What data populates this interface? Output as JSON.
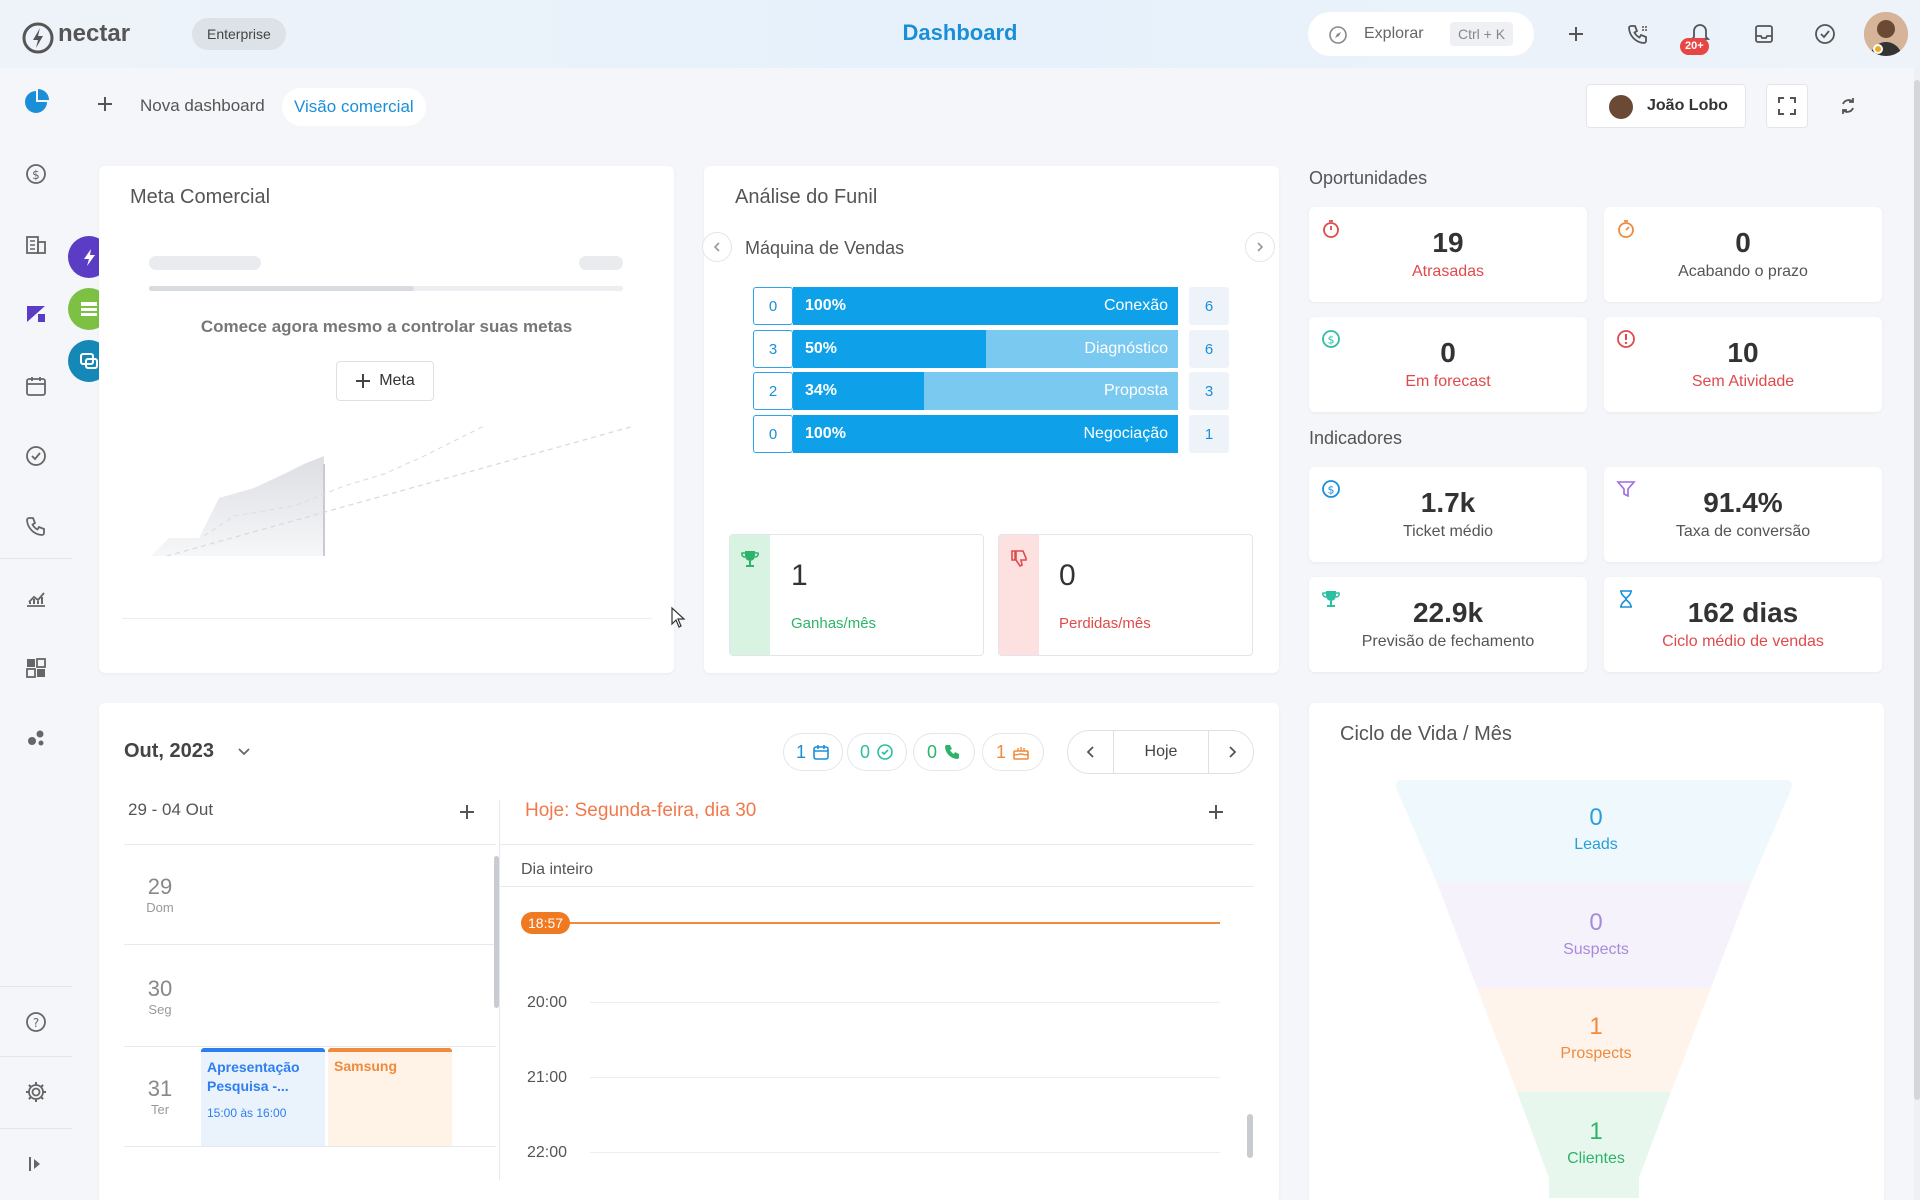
{
  "app": {
    "logo_text": "nectar",
    "plan_badge": "Enterprise",
    "page_title": "Dashboard"
  },
  "topbar": {
    "search_label": "Explorar",
    "search_shortcut": "Ctrl + K",
    "notification_count": "20+"
  },
  "subnav": {
    "new_dashboard": "Nova dashboard",
    "active_tab": "Visão comercial",
    "user_filter": "João Lobo"
  },
  "meta": {
    "title": "Meta Comercial",
    "empty_text": "Comece agora mesmo a controlar suas metas",
    "button": "Meta"
  },
  "funil": {
    "title": "Análise do Funil",
    "pipeline": "Máquina de Vendas",
    "stages": [
      {
        "name": "Conexão",
        "count": "0",
        "percent": "100%",
        "fill": 1.0,
        "total": "6"
      },
      {
        "name": "Diagnóstico",
        "count": "3",
        "percent": "50%",
        "fill": 0.5,
        "total": "6"
      },
      {
        "name": "Proposta",
        "count": "2",
        "percent": "34%",
        "fill": 0.34,
        "total": "3"
      },
      {
        "name": "Negociação",
        "count": "0",
        "percent": "100%",
        "fill": 1.0,
        "total": "1"
      }
    ],
    "won_value": "1",
    "won_label": "Ganhas/mês",
    "lost_value": "0",
    "lost_label": "Perdidas/mês"
  },
  "oportunidades": {
    "title": "Oportunidades",
    "items": [
      {
        "value": "19",
        "label": "Atrasadas"
      },
      {
        "value": "0",
        "label": "Acabando o prazo"
      },
      {
        "value": "0",
        "label": "Em forecast"
      },
      {
        "value": "10",
        "label": "Sem Atividade"
      }
    ]
  },
  "indicadores": {
    "title": "Indicadores",
    "items": [
      {
        "value": "1.7k",
        "label": "Ticket médio"
      },
      {
        "value": "91.4%",
        "label": "Taxa de conversão"
      },
      {
        "value": "22.9k",
        "label": "Previsão de fechamento"
      },
      {
        "value": "162 dias",
        "label": "Ciclo médio de vendas"
      }
    ]
  },
  "agenda": {
    "month": "Out, 2023",
    "chips": [
      "1",
      "0",
      "0",
      "1"
    ],
    "today_button": "Hoje",
    "week_range": "29 - 04 Out",
    "today_label": "Hoje: Segunda-feira, dia 30",
    "all_day": "Dia inteiro",
    "current_time": "18:57",
    "days": [
      {
        "num": "29",
        "name": "Dom"
      },
      {
        "num": "30",
        "name": "Seg"
      },
      {
        "num": "31",
        "name": "Ter"
      }
    ],
    "events": [
      {
        "title": "Apresentação Pesquisa -...",
        "time": "15:00 às 16:00"
      },
      {
        "title": "Samsung"
      }
    ],
    "hours": [
      "20:00",
      "21:00",
      "22:00"
    ]
  },
  "ciclo": {
    "title": "Ciclo de Vida / Mês",
    "stages": [
      {
        "value": "0",
        "label": "Leads",
        "color": "#2a9fd6"
      },
      {
        "value": "0",
        "label": "Suspects",
        "color": "#a78bdb"
      },
      {
        "value": "1",
        "label": "Prospects",
        "color": "#f08a3c"
      },
      {
        "value": "1",
        "label": "Clientes",
        "color": "#2db36a"
      }
    ]
  },
  "colors": {
    "accent": "#1a8fd8",
    "red": "#e04a4a",
    "green": "#2db36a",
    "orange": "#f08a3c"
  }
}
